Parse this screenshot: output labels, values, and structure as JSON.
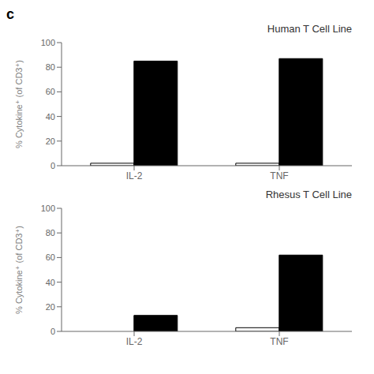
{
  "chart_data": [
    {
      "type": "bar",
      "title": "Human T Cell Line",
      "annotations": [
        "c"
      ],
      "categories": [
        "IL-2",
        "TNF"
      ],
      "series": [
        {
          "color": "white",
          "values": [
            2,
            2
          ]
        },
        {
          "color": "black",
          "values": [
            85,
            87
          ]
        }
      ],
      "ylabel": "% Cytokine⁺ (of CD3⁺)",
      "ylim": [
        0,
        100
      ],
      "yticks": [
        0,
        20,
        40,
        60,
        80,
        100
      ],
      "grid": false
    },
    {
      "type": "bar",
      "title": "Rhesus T Cell Line",
      "categories": [
        "IL-2",
        "TNF"
      ],
      "series": [
        {
          "color": "white",
          "values": [
            0,
            3
          ]
        },
        {
          "color": "black",
          "values": [
            13,
            62
          ]
        }
      ],
      "ylabel": "% Cytokine⁺ (of CD3⁺)",
      "ylim": [
        0,
        100
      ],
      "yticks": [
        0,
        20,
        40,
        60,
        80,
        100
      ],
      "grid": false
    }
  ]
}
